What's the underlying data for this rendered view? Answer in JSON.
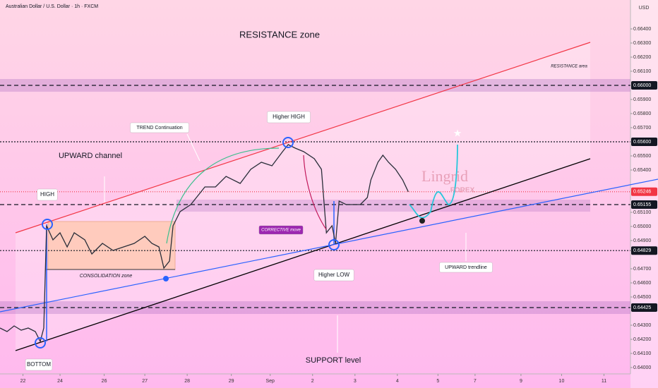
{
  "chart_data": {
    "type": "line",
    "title": "Australian Dollar / U.S. Dollar · 1h · FXCM",
    "currency": "USD",
    "watermark": [
      "Lingrid",
      "FOREX"
    ],
    "x": [
      0,
      4,
      8,
      12,
      16,
      20,
      22.8,
      24.8,
      26.4,
      30,
      34,
      38,
      42,
      48,
      52,
      58,
      64,
      70,
      76,
      82,
      86,
      90,
      92.8,
      96,
      98,
      102,
      108,
      116,
      122,
      128,
      136,
      142,
      148,
      154,
      160,
      163.2,
      167.2,
      172,
      178,
      182,
      184.8,
      188,
      190,
      192,
      196,
      200,
      204,
      208,
      210,
      214,
      216.8,
      220,
      224,
      228,
      231.2
    ],
    "series": [
      {
        "name": "AUDUSD",
        "color": "#2a2e39",
        "values": [
          0.6428,
          0.64255,
          0.64295,
          0.64265,
          0.6428,
          0.64255,
          0.64185,
          0.6428,
          0.65005,
          0.64905,
          0.64955,
          0.64855,
          0.64955,
          0.64905,
          0.64805,
          0.6488,
          0.6483,
          0.64855,
          0.6488,
          0.6493,
          0.6488,
          0.64855,
          0.64705,
          0.64755,
          0.65005,
          0.65105,
          0.65155,
          0.6528,
          0.6528,
          0.65355,
          0.65305,
          0.65405,
          0.65455,
          0.6543,
          0.6553,
          0.6558,
          0.65555,
          0.6553,
          0.6548,
          0.65405,
          0.64955,
          0.65005,
          0.6488,
          0.6518,
          0.65155,
          0.65155,
          0.65155,
          0.65205,
          0.6533,
          0.65455,
          0.65505,
          0.65455,
          0.65405,
          0.6533,
          0.65246
        ]
      }
    ],
    "xlim": [
      0,
      357
    ],
    "xticks": [
      {
        "value": 13,
        "label": "22"
      },
      {
        "value": 34,
        "label": "24"
      },
      {
        "value": 59,
        "label": "26"
      },
      {
        "value": 82,
        "label": "27"
      },
      {
        "value": 106,
        "label": "28"
      },
      {
        "value": 131,
        "label": "29"
      },
      {
        "value": 153,
        "label": "Sep"
      },
      {
        "value": 177,
        "label": "2"
      },
      {
        "value": 201,
        "label": "3"
      },
      {
        "value": 225,
        "label": "4"
      },
      {
        "value": 248,
        "label": "5"
      },
      {
        "value": 269,
        "label": "7"
      },
      {
        "value": 295,
        "label": "9"
      },
      {
        "value": 318,
        "label": "10"
      },
      {
        "value": 342,
        "label": "11"
      }
    ],
    "ylim": [
      0.63955,
      0.66605
    ],
    "yticks": [
      {
        "value": 0.664,
        "label": "0.66400"
      },
      {
        "value": 0.663,
        "label": "0.66300"
      },
      {
        "value": 0.662,
        "label": "0.66200"
      },
      {
        "value": 0.661,
        "label": "0.66100"
      },
      {
        "value": 0.659,
        "label": "0.65900"
      },
      {
        "value": 0.658,
        "label": "0.65800"
      },
      {
        "value": 0.657,
        "label": "0.65700"
      },
      {
        "value": 0.655,
        "label": "0.65500"
      },
      {
        "value": 0.654,
        "label": "0.65400"
      },
      {
        "value": 0.651,
        "label": "0.65100"
      },
      {
        "value": 0.65,
        "label": "0.65000"
      },
      {
        "value": 0.649,
        "label": "0.64900"
      },
      {
        "value": 0.647,
        "label": "0.64700"
      },
      {
        "value": 0.646,
        "label": "0.64600"
      },
      {
        "value": 0.645,
        "label": "0.64500"
      },
      {
        "value": 0.643,
        "label": "0.64300"
      },
      {
        "value": 0.642,
        "label": "0.64200"
      },
      {
        "value": 0.641,
        "label": "0.64100"
      },
      {
        "value": 0.64,
        "label": "0.64000"
      }
    ],
    "levels": [
      {
        "value": 0.66,
        "label": "0.66000",
        "color": "#131722",
        "dash": "6,4"
      },
      {
        "value": 0.656,
        "label": "0.65600",
        "color": "#131722",
        "dash": "2,2"
      },
      {
        "value": 0.65246,
        "label": "0.65246",
        "color": "#f23645",
        "dash": "1,2"
      },
      {
        "value": 0.65155,
        "label": "0.65155",
        "color": "#131722",
        "dash": "6,4"
      },
      {
        "value": 0.64829,
        "label": "0.64829",
        "color": "#131722",
        "dash": "2,2"
      },
      {
        "value": 0.64425,
        "label": "0.64425",
        "color": "#131722",
        "dash": "6,4"
      }
    ],
    "annotations": [
      "RESISTANCE zone",
      "RESISTANCE area",
      "Higher HIGH",
      "TREND Continuation",
      "UPWARD channel",
      "HIGH",
      "CONSOLIDATION zone",
      "CORRECTIVE move",
      "Higher LOW",
      "UPWARD trendline",
      "BOTTOM",
      "SUPPORT level"
    ]
  }
}
